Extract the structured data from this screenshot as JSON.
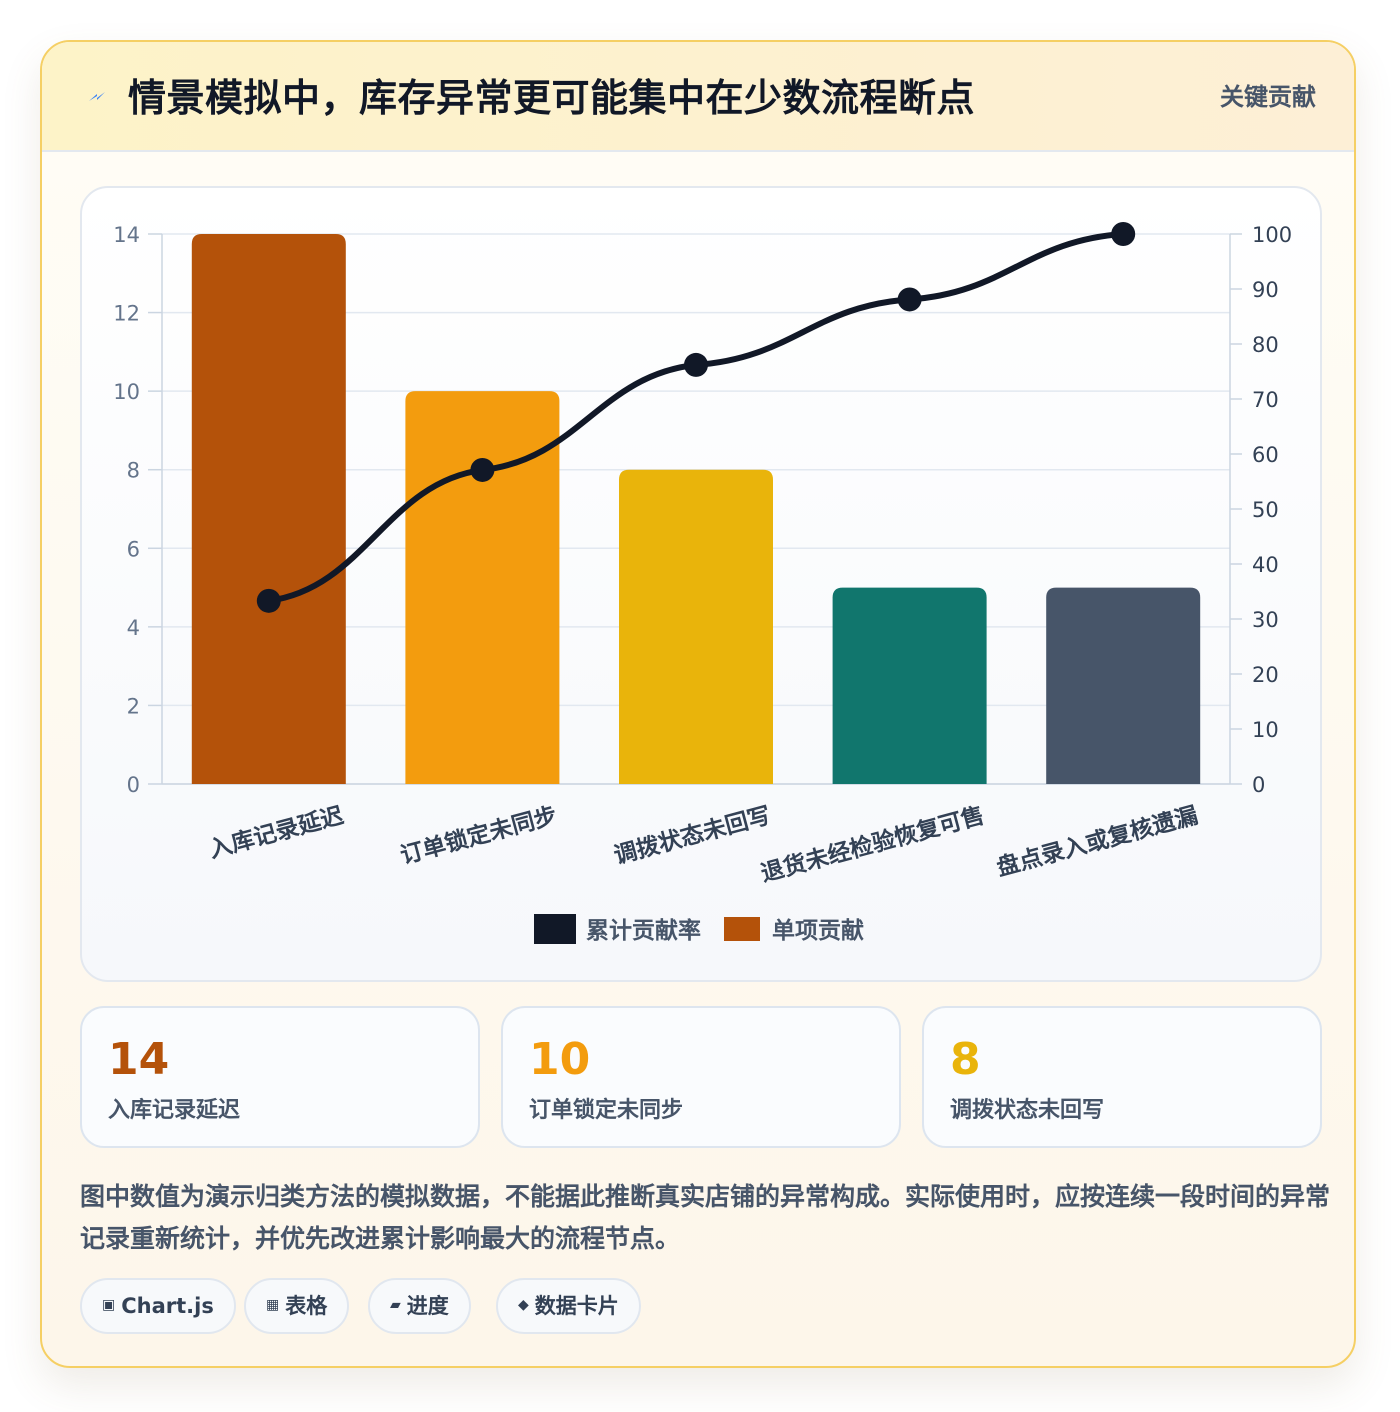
{
  "header": {
    "title": "情景模拟中，库存异常更可能集中在少数流程断点",
    "tag": "关键贡献",
    "icon": "lightning-icon"
  },
  "chart_data": {
    "type": "bar",
    "categories": [
      "入库记录延迟",
      "订单锁定未同步",
      "调拨状态未回写",
      "退货未经检验恢复可售",
      "盘点录入或复核遗漏"
    ],
    "series": [
      {
        "name": "单项贡献",
        "type": "bar",
        "axis": "left",
        "values": [
          14,
          10,
          8,
          5,
          5
        ],
        "colors": [
          "#b4520a",
          "#f39c0e",
          "#e9b40b",
          "#11766d",
          "#475569"
        ]
      },
      {
        "name": "累计贡献率",
        "type": "line",
        "axis": "right",
        "values": [
          33.3,
          57.1,
          76.2,
          88.1,
          100
        ],
        "color": "#111827"
      }
    ],
    "ylim": [
      0,
      14
    ],
    "yticks": [
      0,
      2,
      4,
      6,
      8,
      10,
      12,
      14
    ],
    "y2lim": [
      0,
      100
    ],
    "y2ticks": [
      0,
      10,
      20,
      30,
      40,
      50,
      60,
      70,
      80,
      90,
      100
    ],
    "legend": [
      "累计贡献率",
      "单项贡献"
    ],
    "legend_position": "bottom",
    "grid": true
  },
  "stats": [
    {
      "value": "14",
      "label": "入库记录延迟",
      "color": "#b4520a"
    },
    {
      "value": "10",
      "label": "订单锁定未同步",
      "color": "#f39c0e"
    },
    {
      "value": "8",
      "label": "调拨状态未回写",
      "color": "#e9b40b"
    }
  ],
  "note": "图中数值为演示归类方法的模拟数据，不能据此推断真实店铺的异常构成。实际使用时，应按连续一段时间的异常记录重新统计，并优先改进累计影响最大的流程节点。",
  "chips": [
    {
      "icon": "▣",
      "label": "Chart.js"
    },
    {
      "icon": "▦",
      "label": "表格"
    },
    {
      "icon": "▰",
      "label": "进度"
    },
    {
      "icon": "◆",
      "label": "数据卡片"
    }
  ]
}
